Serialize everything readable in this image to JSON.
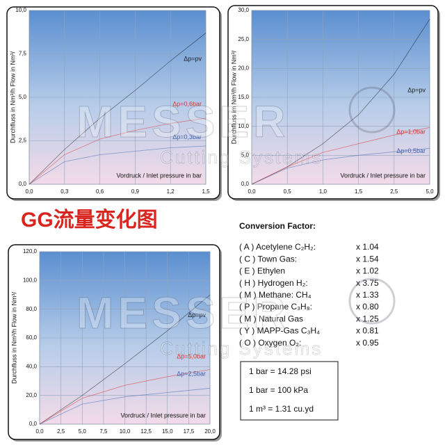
{
  "chart_data": [
    {
      "type": "line",
      "x_label": "Vordruck / Inlet pressure in bar",
      "y_label": "Durchfluss in Nm³/h  Flow in Nm³/",
      "x": [
        0,
        0.3,
        0.6,
        0.9,
        1.2,
        1.5
      ],
      "xlim": [
        0,
        1.5
      ],
      "xticks": [
        {
          "value": 0,
          "label": "0,0"
        },
        {
          "value": 0.3,
          "label": "0,3"
        },
        {
          "value": 0.6,
          "label": "0,6"
        },
        {
          "value": 0.9,
          "label": "0,9"
        },
        {
          "value": 1.2,
          "label": "1,2"
        },
        {
          "value": 1.5,
          "label": "1,5"
        }
      ],
      "ylim": [
        0,
        10
      ],
      "yticks": [
        {
          "value": 0,
          "label": "0,0"
        },
        {
          "value": 2.5,
          "label": "2,5"
        },
        {
          "value": 5,
          "label": "5,0"
        },
        {
          "value": 7.5,
          "label": "7,5"
        },
        {
          "value": 10,
          "label": "10,0"
        }
      ],
      "grid": true,
      "series": [
        {
          "name": "Δp=pv",
          "color": "#1a1a1a",
          "values": [
            0,
            2.0,
            3.8,
            5.4,
            7.1,
            8.7
          ]
        },
        {
          "name": "Δp=0,6bar",
          "color": "#e0302a",
          "values": [
            0,
            1.7,
            2.6,
            3.1,
            3.5,
            3.8
          ]
        },
        {
          "name": "Δp=0,3bar",
          "color": "#3a5fb0",
          "values": [
            0,
            1.3,
            1.7,
            1.9,
            2.1,
            2.2
          ]
        }
      ]
    },
    {
      "type": "line",
      "x_label": "Vordruck / Inlet pressure in bar",
      "y_label": "Durchfluss im Nm³/h  Flow in Nm³/",
      "categories": [
        "0,0",
        "0,5",
        "1,0",
        "1,5",
        "2,5",
        "5,0"
      ],
      "ylim": [
        0,
        30
      ],
      "yticks": [
        {
          "value": 0,
          "label": "0,0"
        },
        {
          "value": 5,
          "label": "5,0"
        },
        {
          "value": 10,
          "label": "10,0"
        },
        {
          "value": 15,
          "label": "15,0"
        },
        {
          "value": 20,
          "label": "20,0"
        },
        {
          "value": 25,
          "label": "25,0"
        },
        {
          "value": 30,
          "label": "30,0"
        }
      ],
      "grid": true,
      "series": [
        {
          "name": "Δp=pv",
          "color": "#1a1a1a",
          "values": [
            0,
            3,
            7,
            12,
            19,
            28.5
          ]
        },
        {
          "name": "Δp=1,0bar",
          "color": "#e0302a",
          "values": [
            0,
            3,
            5.5,
            7,
            8.5,
            9.8
          ]
        },
        {
          "name": "Δp=0,5bar",
          "color": "#3a5fb0",
          "values": [
            0,
            2.8,
            4.2,
            5,
            5.6,
            6.2
          ]
        }
      ]
    },
    {
      "type": "line",
      "x_label": "Vordruck / Inlet pressure in bar",
      "y_label": "Durchfluss in Nm³/h  Flow in Nm³/",
      "x": [
        0,
        5,
        10,
        15,
        20
      ],
      "xlim": [
        0,
        20
      ],
      "xticks": [
        {
          "value": 0,
          "label": "0,0"
        },
        {
          "value": 2.5,
          "label": "2,5"
        },
        {
          "value": 5,
          "label": "5,0"
        },
        {
          "value": 7.5,
          "label": "7,5"
        },
        {
          "value": 10,
          "label": "10,0"
        },
        {
          "value": 12.5,
          "label": "12,5"
        },
        {
          "value": 15,
          "label": "15,0"
        },
        {
          "value": 17.5,
          "label": "17,5"
        },
        {
          "value": 20,
          "label": "20,0"
        }
      ],
      "ylim": [
        0,
        120
      ],
      "yticks": [
        {
          "value": 0,
          "label": "0,0"
        },
        {
          "value": 20,
          "label": "20,0"
        },
        {
          "value": 40,
          "label": "40,0"
        },
        {
          "value": 60,
          "label": "60,0"
        },
        {
          "value": 80,
          "label": "80,0"
        },
        {
          "value": 100,
          "label": "100,0"
        },
        {
          "value": 120,
          "label": "120,0"
        }
      ],
      "grid": true,
      "series": [
        {
          "name": "Δp=pv",
          "color": "#1a1a1a",
          "values": [
            0,
            20,
            42,
            65,
            90
          ]
        },
        {
          "name": "Δp=5,0bar",
          "color": "#e0302a",
          "values": [
            0,
            18,
            27,
            33,
            38
          ]
        },
        {
          "name": "Δp=2,5bar",
          "color": "#3a5fb0",
          "values": [
            0,
            14,
            19,
            22,
            25
          ]
        }
      ]
    }
  ],
  "watermark": {
    "brand": "MESSER",
    "sub": "Cutting Systems"
  },
  "heading": "GG流量变化图",
  "conversion": {
    "title": "Conversion Factor:",
    "rows": [
      [
        "( A ) Acetylene C₂H₂:",
        "x 1.04"
      ],
      [
        "( C ) Town Gas:",
        "x 1.54"
      ],
      [
        "( E ) Ethylen",
        "x 1.02"
      ],
      [
        "( H ) Hydrogen H₂:",
        "x 3.75"
      ],
      [
        "( M ) Methane: CH₄",
        "x 1.33"
      ],
      [
        "( P ) Propane C₃H₈:",
        "x 0.80"
      ],
      [
        "( M ) Natural Gas",
        "x 1.25"
      ],
      [
        "( Y ) MAPP-Gas C₃H₄",
        "x 0.81"
      ],
      [
        "( O ) Oxygen O₂:",
        "x 0.95"
      ]
    ],
    "units": [
      "1 bar = 14.28 psi",
      "1 bar = 100 kPa",
      "1 m³ =  1.31 cu.yd"
    ]
  }
}
